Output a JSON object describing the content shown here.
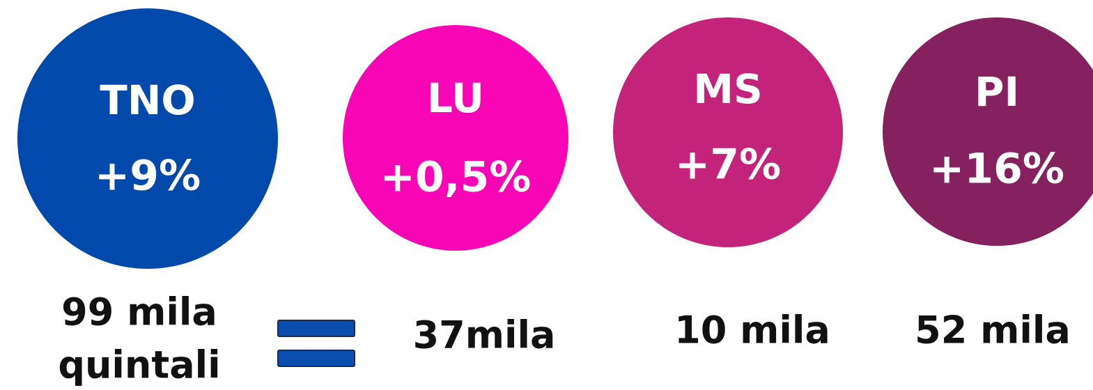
{
  "items": [
    {
      "code": "TNO",
      "change": "+9%",
      "amount": [
        "99 mila",
        "quintali"
      ]
    },
    {
      "code": "LU",
      "change": "+0,5%",
      "amount": [
        "37mila"
      ]
    },
    {
      "code": "MS",
      "change": "+7%",
      "amount": [
        "10 mila"
      ]
    },
    {
      "code": "PI",
      "change": "+16%",
      "amount": [
        "52 mila"
      ]
    }
  ]
}
